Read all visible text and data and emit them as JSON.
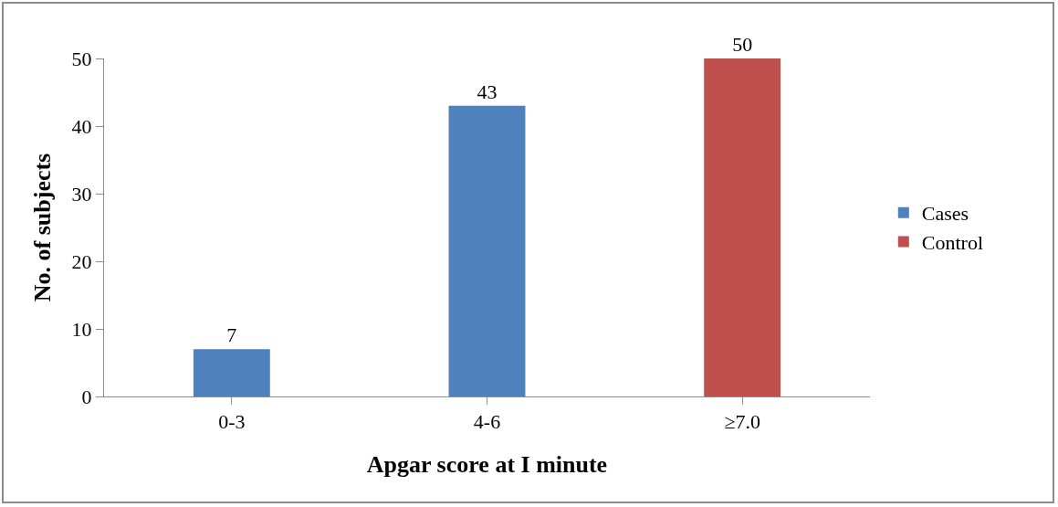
{
  "chart_data": {
    "type": "bar",
    "xlabel": "Apgar score at I minute",
    "ylabel": "No. of subjects",
    "categories": [
      "0-3",
      "4-6",
      "≥7.0"
    ],
    "series": [
      {
        "name": "Cases",
        "color": "#4f81bd",
        "values": [
          7,
          43,
          null
        ]
      },
      {
        "name": "Control",
        "color": "#c0504d",
        "values": [
          null,
          null,
          50
        ]
      }
    ],
    "ylim": [
      0,
      50
    ],
    "yticks": [
      0,
      10,
      20,
      30,
      40,
      50
    ],
    "grid": false,
    "legend": "right",
    "data_labels": true
  }
}
